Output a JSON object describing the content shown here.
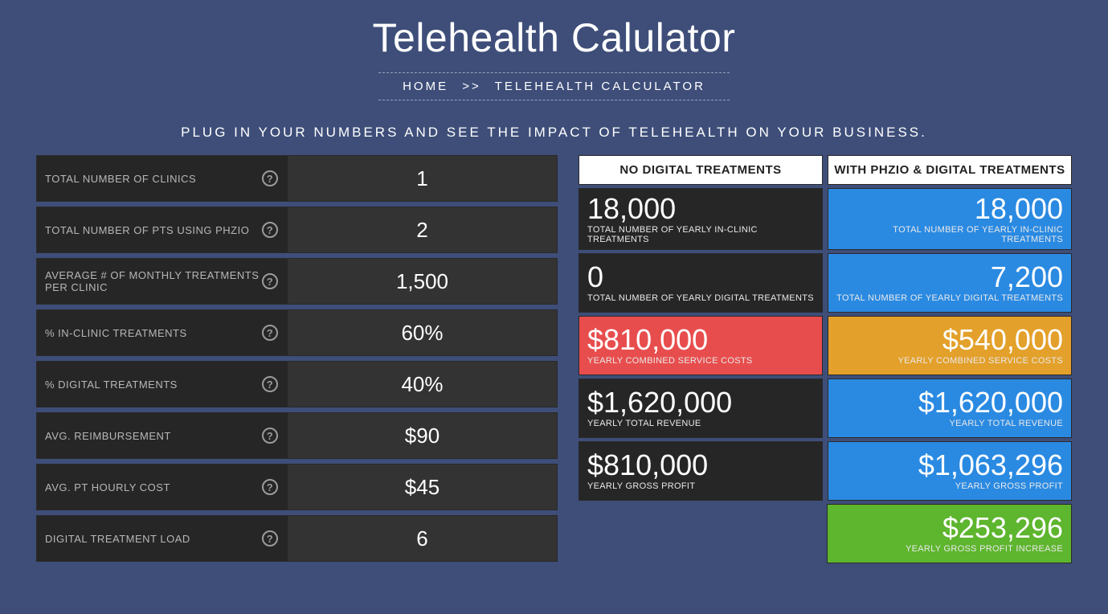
{
  "title": "Telehealth Calulator",
  "breadcrumb": {
    "home": "HOME",
    "sep": ">>",
    "current": "TELEHEALTH CALCULATOR"
  },
  "subtitle": "PLUG IN YOUR NUMBERS AND SEE THE IMPACT OF TELEHEALTH ON YOUR BUSINESS.",
  "inputs": [
    {
      "label": "TOTAL NUMBER OF CLINICS",
      "value": "1"
    },
    {
      "label": "TOTAL NUMBER OF PTS USING PHZIO",
      "value": "2"
    },
    {
      "label": "AVERAGE # OF MONTHLY TREATMENTS PER CLINIC",
      "value": "1,500"
    },
    {
      "label": "% IN-CLINIC TREATMENTS",
      "value": "60%"
    },
    {
      "label": "% DIGITAL TREATMENTS",
      "value": "40%"
    },
    {
      "label": "AVG. REIMBURSEMENT",
      "value": "$90"
    },
    {
      "label": "AVG. PT HOURLY COST",
      "value": "$45"
    },
    {
      "label": "DIGITAL TREATMENT LOAD",
      "value": "6"
    }
  ],
  "resultHeaders": {
    "left": "NO DIGITAL TREATMENTS",
    "right": "WITH PHZIO & DIGITAL TREATMENTS"
  },
  "results": [
    {
      "leftClass": "dark",
      "leftBig": "18,000",
      "leftSmall": "TOTAL NUMBER OF YEARLY IN-CLINIC TREATMENTS",
      "rightClass": "blue",
      "rightBig": "18,000",
      "rightSmall": "TOTAL NUMBER OF YEARLY IN-CLINIC TREATMENTS"
    },
    {
      "leftClass": "dark",
      "leftBig": "0",
      "leftSmall": "TOTAL NUMBER OF YEARLY DIGITAL TREATMENTS",
      "rightClass": "blue",
      "rightBig": "7,200",
      "rightSmall": "TOTAL NUMBER OF YEARLY DIGITAL TREATMENTS"
    },
    {
      "leftClass": "red",
      "leftBig": "$810,000",
      "leftSmall": "YEARLY COMBINED SERVICE COSTS",
      "rightClass": "orange",
      "rightBig": "$540,000",
      "rightSmall": "YEARLY COMBINED SERVICE COSTS"
    },
    {
      "leftClass": "dark",
      "leftBig": "$1,620,000",
      "leftSmall": "YEARLY TOTAL REVENUE",
      "rightClass": "blue",
      "rightBig": "$1,620,000",
      "rightSmall": "YEARLY TOTAL REVENUE"
    },
    {
      "leftClass": "dark",
      "leftBig": "$810,000",
      "leftSmall": "YEARLY GROSS PROFIT",
      "rightClass": "blue",
      "rightBig": "$1,063,296",
      "rightSmall": "YEARLY GROSS PROFIT"
    },
    {
      "leftClass": "empty",
      "leftBig": "",
      "leftSmall": "",
      "rightClass": "green",
      "rightBig": "$253,296",
      "rightSmall": "YEARLY GROSS PROFIT INCREASE"
    }
  ]
}
